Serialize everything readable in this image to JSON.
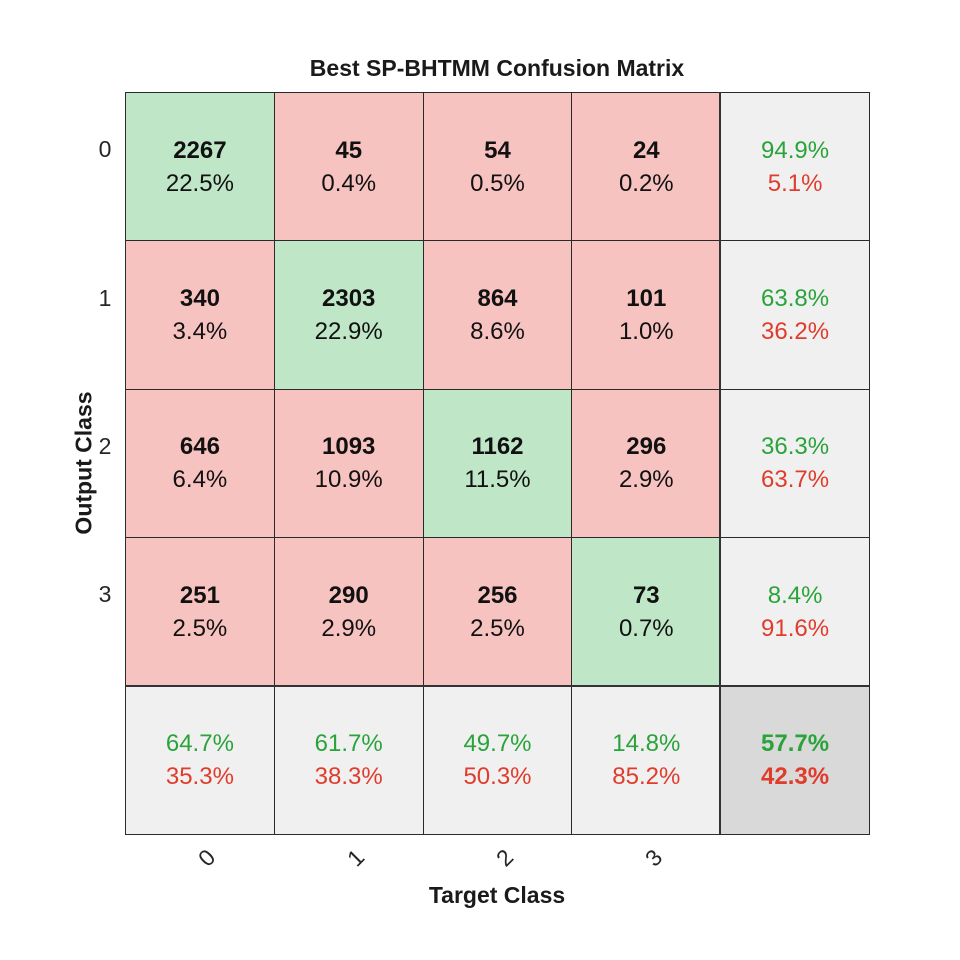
{
  "chart_data": {
    "type": "heatmap",
    "title": "Best SP-BHTMM Confusion Matrix",
    "xlabel": "Target Class",
    "ylabel": "Output Class",
    "classes": [
      "0",
      "1",
      "2",
      "3"
    ],
    "matrix": [
      [
        {
          "count": "2267",
          "pct": "22.5%"
        },
        {
          "count": "45",
          "pct": "0.4%"
        },
        {
          "count": "54",
          "pct": "0.5%"
        },
        {
          "count": "24",
          "pct": "0.2%"
        }
      ],
      [
        {
          "count": "340",
          "pct": "3.4%"
        },
        {
          "count": "2303",
          "pct": "22.9%"
        },
        {
          "count": "864",
          "pct": "8.6%"
        },
        {
          "count": "101",
          "pct": "1.0%"
        }
      ],
      [
        {
          "count": "646",
          "pct": "6.4%"
        },
        {
          "count": "1093",
          "pct": "10.9%"
        },
        {
          "count": "1162",
          "pct": "11.5%"
        },
        {
          "count": "296",
          "pct": "2.9%"
        }
      ],
      [
        {
          "count": "251",
          "pct": "2.5%"
        },
        {
          "count": "290",
          "pct": "2.9%"
        },
        {
          "count": "256",
          "pct": "2.5%"
        },
        {
          "count": "73",
          "pct": "0.7%"
        }
      ]
    ],
    "row_summary": [
      {
        "correct": "94.9%",
        "incorrect": "5.1%"
      },
      {
        "correct": "63.8%",
        "incorrect": "36.2%"
      },
      {
        "correct": "36.3%",
        "incorrect": "63.7%"
      },
      {
        "correct": "8.4%",
        "incorrect": "91.6%"
      }
    ],
    "col_summary": [
      {
        "correct": "64.7%",
        "incorrect": "35.3%"
      },
      {
        "correct": "61.7%",
        "incorrect": "38.3%"
      },
      {
        "correct": "49.7%",
        "incorrect": "50.3%"
      },
      {
        "correct": "14.8%",
        "incorrect": "85.2%"
      }
    ],
    "overall": {
      "correct": "57.7%",
      "incorrect": "42.3%"
    },
    "colors": {
      "diagonal": "#bfe6c7",
      "off_diagonal": "#f7c3c0",
      "summary": "#f0f0f0",
      "overall": "#d9d9d9",
      "correct_text": "#2aa33a",
      "incorrect_text": "#e03c2c"
    }
  }
}
